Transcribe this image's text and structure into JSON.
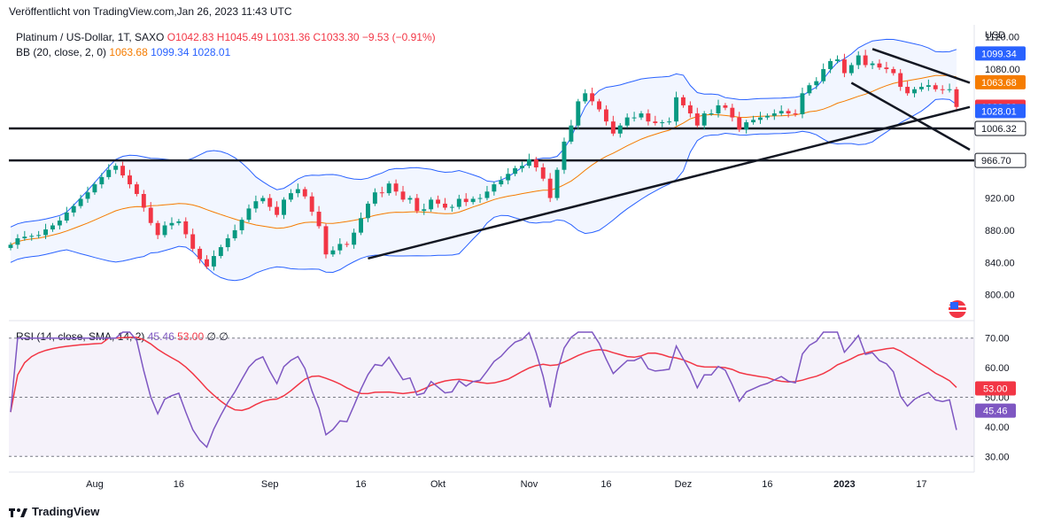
{
  "published": "Veröffentlicht von TradingView.com,Jan 26, 2023 11:43 UTC",
  "legend": {
    "symbol": "Platinum / US-Dollar, 1T, SAXO",
    "ohlc": "O1042.83 H1045.49 L1031.36 C1033.30 −9.53 (−0.91%)",
    "bb_label": "BB (20, close, 2, 0)",
    "bb_basis": "1063.68",
    "bb_upper": "1099.34",
    "bb_lower": "1028.01",
    "rsi_label": "RSI (14, close, SMA, 14, 2)",
    "rsi_value": "45.46",
    "rsi_sma": "53.00",
    "rsi_extra": "∅ ∅"
  },
  "currency": "USD",
  "brand": "TradingView",
  "colors": {
    "up": "#089981",
    "down": "#f23645",
    "bb_basis": "#f57c00",
    "bb_band": "#2962ff",
    "rsi": "#7e57c2",
    "rsi_sma": "#f23645"
  },
  "chart_data": [
    {
      "type": "candlestick",
      "ylim": [
        770,
        1135
      ],
      "y_ticks": [
        1120,
        1080,
        920,
        880,
        840,
        800
      ],
      "x_ticks": [
        "Aug",
        "16",
        "Sep",
        "16",
        "Okt",
        "Nov",
        "16",
        "Dez",
        "16",
        "2023",
        "17"
      ],
      "close": [
        862,
        870,
        872,
        873,
        874,
        881,
        886,
        892,
        902,
        910,
        919,
        927,
        937,
        946,
        955,
        960,
        948,
        937,
        925,
        908,
        889,
        874,
        886,
        889,
        891,
        875,
        857,
        844,
        835,
        848,
        859,
        870,
        880,
        893,
        907,
        916,
        920,
        909,
        899,
        918,
        926,
        931,
        922,
        903,
        885,
        850,
        855,
        863,
        862,
        877,
        895,
        913,
        927,
        926,
        938,
        928,
        918,
        920,
        904,
        906,
        918,
        913,
        908,
        909,
        919,
        915,
        919,
        920,
        928,
        937,
        942,
        950,
        957,
        960,
        968,
        958,
        944,
        920,
        955,
        990,
        1010,
        1040,
        1050,
        1040,
        1030,
        1015,
        1000,
        1010,
        1020,
        1020,
        1025,
        1015,
        1013,
        1014,
        1015,
        1045,
        1035,
        1025,
        1010,
        1025,
        1025,
        1035,
        1032,
        1020,
        1005,
        1014,
        1017,
        1020,
        1022,
        1025,
        1028,
        1025,
        1024,
        1050,
        1060,
        1065,
        1080,
        1090,
        1092,
        1075,
        1085,
        1097,
        1085,
        1087,
        1082,
        1080,
        1075,
        1058,
        1050,
        1055,
        1058,
        1060,
        1055,
        1054,
        1055,
        1033
      ],
      "price_lines": [
        1006.32,
        966.7
      ],
      "labels": {
        "bb_upper": "1099.34",
        "bb_basis": "1063.68",
        "close": "1033.30",
        "bb_lower": "1028.01",
        "support_1": "1006.32",
        "support_2": "966.70"
      }
    },
    {
      "type": "line",
      "name": "RSI",
      "ylim": [
        25,
        75
      ],
      "y_ticks": [
        70,
        60,
        50,
        40,
        30
      ],
      "levels": [
        70,
        50,
        30
      ],
      "labels": {
        "rsi_sma": "53.00",
        "rsi": "45.46"
      }
    }
  ]
}
